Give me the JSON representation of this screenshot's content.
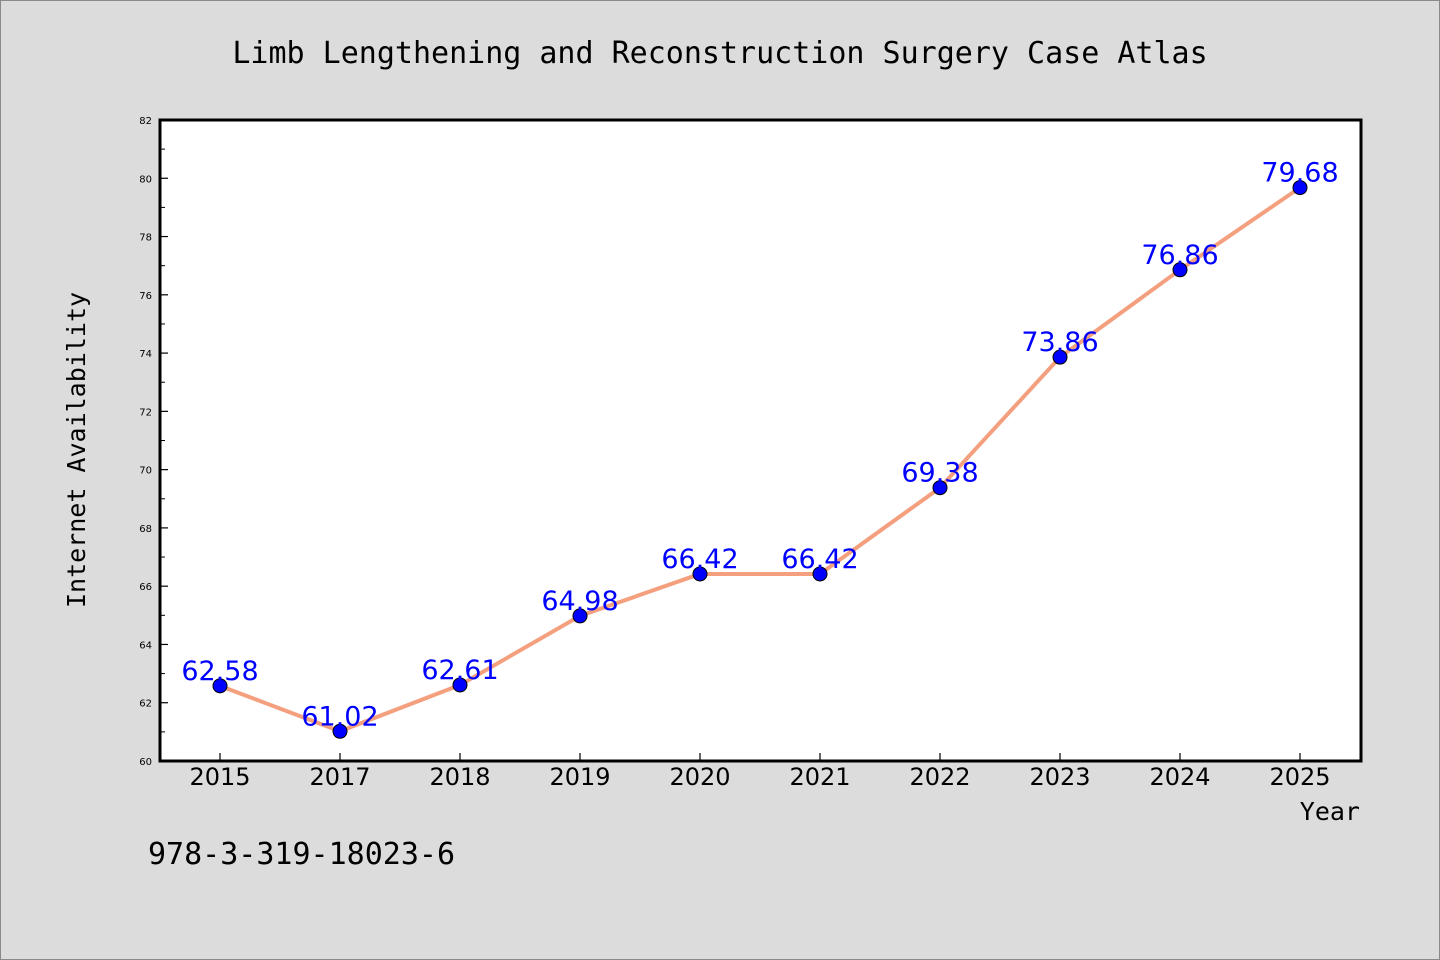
{
  "chart_data": {
    "type": "line",
    "title": "Limb Lengthening and Reconstruction Surgery Case Atlas",
    "xlabel": "Year",
    "ylabel": "Internet Availability",
    "categories": [
      "2015",
      "2017",
      "2018",
      "2019",
      "2020",
      "2021",
      "2022",
      "2023",
      "2024",
      "2025"
    ],
    "series": [
      {
        "values": [
          62.58,
          61.02,
          62.61,
          64.98,
          66.42,
          66.42,
          69.38,
          73.86,
          76.86,
          79.68
        ],
        "data_labels": [
          "62.58",
          "61.02",
          "62.61",
          "64.98",
          "66.42",
          "66.42",
          "69.38",
          "73.86",
          "76.86",
          "79.68"
        ]
      }
    ],
    "ylim": [
      60,
      82
    ],
    "yticks": [
      60,
      62,
      64,
      66,
      68,
      70,
      72,
      74,
      76,
      78,
      80,
      82
    ],
    "ytick_labels": [
      "60",
      "62",
      "64",
      "66",
      "68",
      "70",
      "72",
      "74",
      "76",
      "78",
      "80",
      "82"
    ],
    "grid": false,
    "legend": "none",
    "colors": {
      "line": "#f4a07f",
      "marker": "#0000ff",
      "data_label": "#0000ff",
      "background": "#dcdcdc",
      "plot_area": "#ffffff"
    }
  },
  "footer": {
    "isbn": "978-3-319-18023-6"
  }
}
